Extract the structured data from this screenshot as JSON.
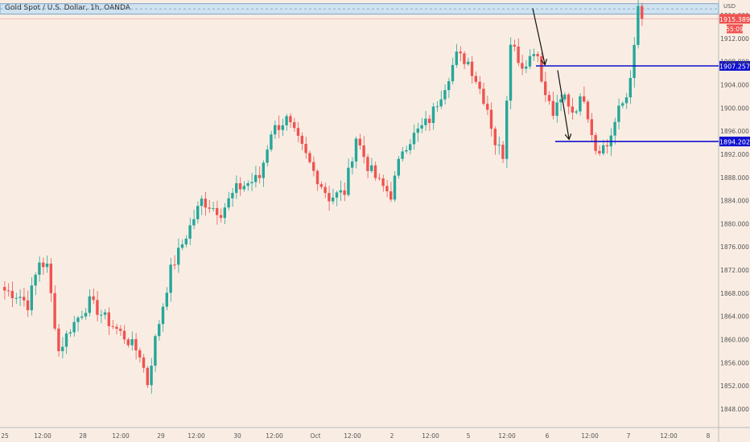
{
  "chart_title": "Gold Spot / U.S. Dollar, 1h, OANDA",
  "currency": "USD",
  "price_axis_labels": [
    "1916.000",
    "1912.000",
    "1908.000",
    "1904.000",
    "1900.000",
    "1896.000",
    "1892.000",
    "1888.000",
    "1884.000",
    "1880.000",
    "1876.000",
    "1872.000",
    "1868.000",
    "1864.000",
    "1860.000",
    "1856.000",
    "1852.000",
    "1848.000"
  ],
  "time_axis_labels": [
    "25",
    "12:00",
    "28",
    "12:00",
    "29",
    "12:00",
    "30",
    "12:00",
    "Oct",
    "12:00",
    "2",
    "12:00",
    "5",
    "12:00",
    "6",
    "12:00",
    "7",
    "12:00",
    "8"
  ],
  "current_price": "1915.389",
  "countdown": "55:09",
  "colors": {
    "background": "#f9ede3",
    "bull": "#26a69a",
    "bear": "#ef5350",
    "level_line": "#1010d0",
    "zone_fill": "#cfe2f0",
    "zone_border": "#7fa7c8",
    "arrow": "#111111",
    "price_tag": "#ef5350"
  },
  "chart_data": {
    "type": "candlestick",
    "symbol": "Gold Spot / U.S. Dollar",
    "timeframe": "1h",
    "source": "OANDA",
    "y_axis_range": [
      1846,
      1920
    ],
    "x_ticks": [
      "25",
      "12:00",
      "28",
      "12:00",
      "29",
      "12:00",
      "30",
      "12:00",
      "Oct",
      "12:00",
      "2",
      "12:00",
      "5",
      "12:00",
      "6",
      "12:00",
      "7",
      "12:00",
      "8"
    ],
    "y_ticks": [
      1916,
      1912,
      1908,
      1904,
      1900,
      1896,
      1892,
      1888,
      1884,
      1880,
      1876,
      1872,
      1868,
      1864,
      1860,
      1856,
      1852,
      1848
    ],
    "key_levels": [
      {
        "price": 1907.257,
        "label": "1907.257"
      },
      {
        "price": 1894.202,
        "label": "1894.202"
      }
    ],
    "resistance_zone": [
      1916.2,
      1918.0
    ],
    "last_price": 1915.389,
    "countdown": "55:09",
    "anchor_points": [
      {
        "bar": 0,
        "price": 1868.5
      },
      {
        "bar": 4,
        "price": 1867.5
      },
      {
        "bar": 6,
        "price": 1866.0
      },
      {
        "bar": 9,
        "price": 1873.5
      },
      {
        "bar": 11,
        "price": 1872.5
      },
      {
        "bar": 14,
        "price": 1858.0
      },
      {
        "bar": 17,
        "price": 1862.0
      },
      {
        "bar": 22,
        "price": 1866.5
      },
      {
        "bar": 27,
        "price": 1863.0
      },
      {
        "bar": 31,
        "price": 1860.5
      },
      {
        "bar": 35,
        "price": 1857.5
      },
      {
        "bar": 37,
        "price": 1852.5
      },
      {
        "bar": 39,
        "price": 1860.0
      },
      {
        "bar": 43,
        "price": 1872.0
      },
      {
        "bar": 47,
        "price": 1878.0
      },
      {
        "bar": 51,
        "price": 1884.0
      },
      {
        "bar": 56,
        "price": 1882.0
      },
      {
        "bar": 60,
        "price": 1886.0
      },
      {
        "bar": 66,
        "price": 1888.0
      },
      {
        "bar": 69,
        "price": 1896.0
      },
      {
        "bar": 73,
        "price": 1898.0
      },
      {
        "bar": 77,
        "price": 1893.0
      },
      {
        "bar": 80,
        "price": 1889.0
      },
      {
        "bar": 84,
        "price": 1884.5
      },
      {
        "bar": 88,
        "price": 1885.5
      },
      {
        "bar": 91,
        "price": 1895.0
      },
      {
        "bar": 94,
        "price": 1890.0
      },
      {
        "bar": 97,
        "price": 1887.0
      },
      {
        "bar": 100,
        "price": 1885.0
      },
      {
        "bar": 103,
        "price": 1893.0
      },
      {
        "bar": 107,
        "price": 1896.0
      },
      {
        "bar": 110,
        "price": 1898.0
      },
      {
        "bar": 114,
        "price": 1904.0
      },
      {
        "bar": 117,
        "price": 1909.0
      },
      {
        "bar": 120,
        "price": 1908.0
      },
      {
        "bar": 122,
        "price": 1905.0
      },
      {
        "bar": 125,
        "price": 1900.0
      },
      {
        "bar": 127,
        "price": 1894.0
      },
      {
        "bar": 129,
        "price": 1892.0
      },
      {
        "bar": 131,
        "price": 1912.0
      },
      {
        "bar": 134,
        "price": 1907.0
      },
      {
        "bar": 136,
        "price": 1909.0
      },
      {
        "bar": 138,
        "price": 1910.0
      },
      {
        "bar": 139,
        "price": 1904.0
      },
      {
        "bar": 142,
        "price": 1899.0
      },
      {
        "bar": 145,
        "price": 1902.0
      },
      {
        "bar": 147,
        "price": 1899.5
      },
      {
        "bar": 150,
        "price": 1902.0
      },
      {
        "bar": 153,
        "price": 1893.0
      },
      {
        "bar": 156,
        "price": 1893.5
      },
      {
        "bar": 159,
        "price": 1899.5
      },
      {
        "bar": 161,
        "price": 1902.0
      },
      {
        "bar": 163,
        "price": 1910.0
      },
      {
        "bar": 164,
        "price": 1917.0
      },
      {
        "bar": 165,
        "price": 1915.4
      }
    ]
  }
}
